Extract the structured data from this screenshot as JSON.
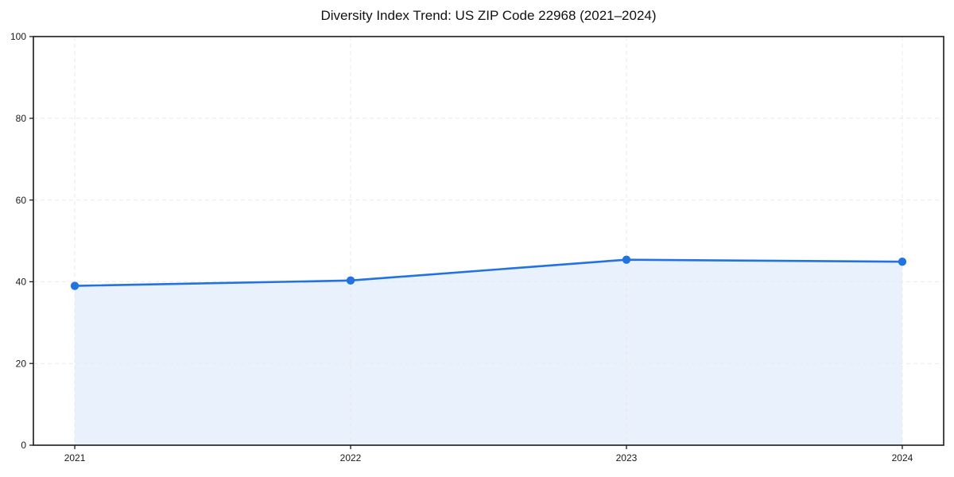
{
  "chart_data": {
    "type": "area",
    "title": "Diversity Index Trend: US ZIP Code 22968 (2021–2024)",
    "series_name": "Diversity Index",
    "categories": [
      "2021",
      "2022",
      "2023",
      "2024"
    ],
    "x": [
      2021,
      2022,
      2023,
      2024
    ],
    "values": [
      39.0,
      40.3,
      45.4,
      44.9
    ],
    "xlabel": "",
    "ylabel": "",
    "ylim": [
      0,
      100
    ],
    "yticks": [
      0,
      20,
      40,
      60,
      80,
      100
    ],
    "grid": true,
    "grid_style": "dashed",
    "legend": false,
    "colors": {
      "line": "#2272e0",
      "marker": "#2272e0",
      "area_fill": "#e9f1fc",
      "grid": "#e9e9e9",
      "spine": "#1a1a1a",
      "tick_text": "#1a1a1a",
      "background": "#ffffff"
    }
  }
}
